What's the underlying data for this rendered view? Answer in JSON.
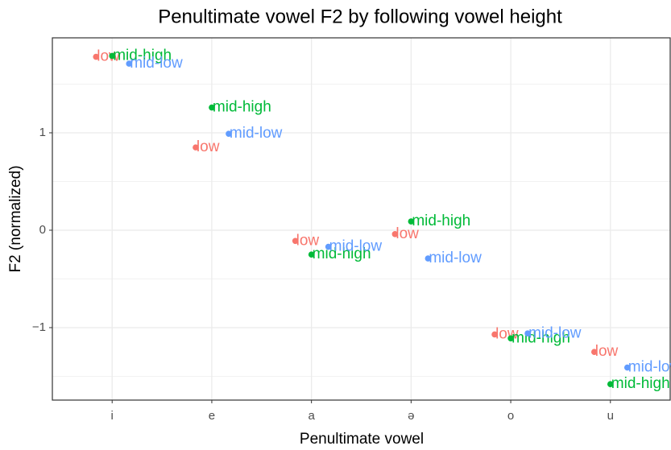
{
  "chart_data": {
    "type": "scatter",
    "title": "Penultimate vowel F2 by following vowel height",
    "x_label": "Penultimate vowel",
    "y_label": "F2 (normalized)",
    "categories": [
      "i",
      "e",
      "a",
      "ə",
      "o",
      "u"
    ],
    "series": [
      {
        "name": "low",
        "color": "#F8766D",
        "values": [
          1.78,
          0.85,
          -0.11,
          -0.04,
          -1.07,
          -1.25
        ]
      },
      {
        "name": "mid-high",
        "color": "#00BA38",
        "values": [
          1.79,
          1.26,
          -0.25,
          0.09,
          -1.11,
          -1.58
        ]
      },
      {
        "name": "mid-low",
        "color": "#619CFF",
        "values": [
          1.71,
          0.99,
          -0.17,
          -0.29,
          -1.06,
          -1.41
        ]
      }
    ],
    "ylim": [
      -1.744,
      1.975
    ],
    "yticks": [
      {
        "value": -1,
        "label": "−1"
      },
      0,
      1
    ],
    "minor_yticks": [
      -1.5,
      -0.5,
      0.5,
      1.5
    ],
    "grid": true
  }
}
